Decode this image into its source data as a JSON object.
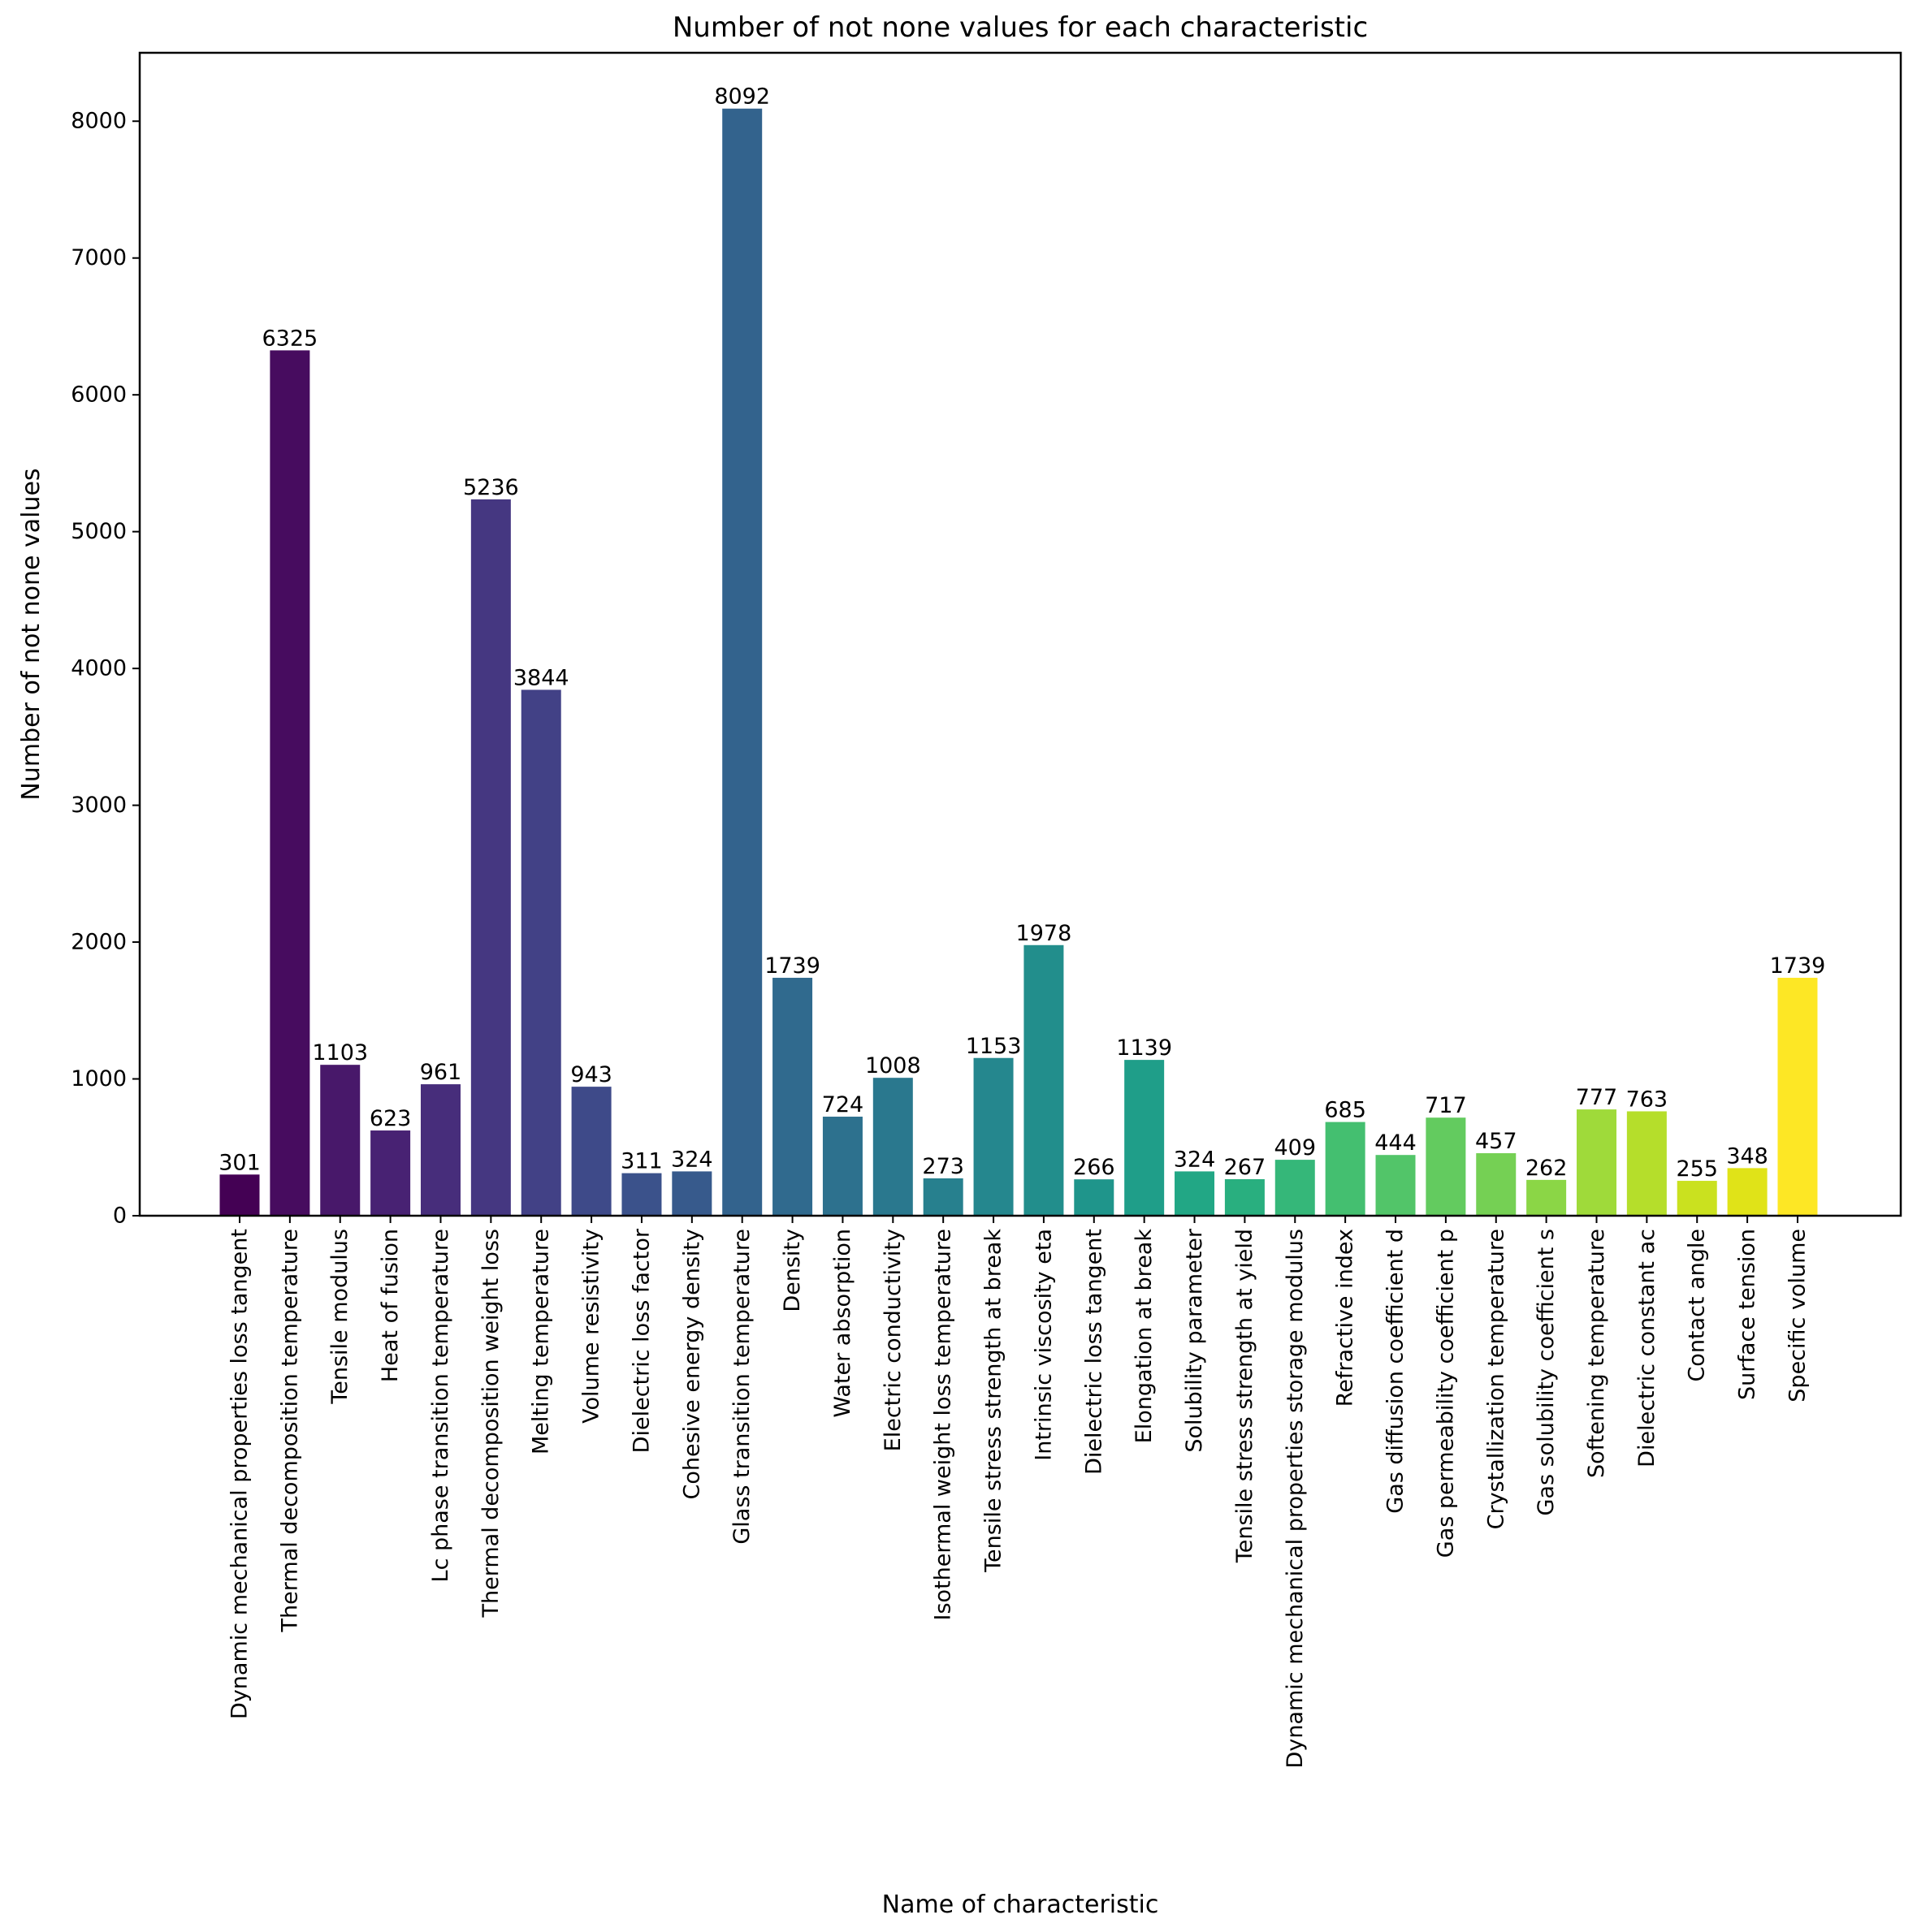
{
  "chart_data": {
    "type": "bar",
    "title": "Number of not none values for each characteristic",
    "xlabel": "Name of characteristic",
    "ylabel": "Number of not none values",
    "ylim": [
      0,
      8500
    ],
    "yticks": [
      0,
      1000,
      2000,
      3000,
      4000,
      5000,
      6000,
      7000,
      8000
    ],
    "grid": false,
    "categories": [
      "Dynamic mechanical properties loss tangent",
      "Thermal decomposition temperature",
      "Tensile modulus",
      "Heat of fusion",
      "Lc phase transition temperature",
      "Thermal decomposition weight loss",
      "Melting temperature",
      "Volume resistivity",
      "Dielectric loss factor",
      "Cohesive energy density",
      "Glass transition temperature",
      "Density",
      "Water absorption",
      "Electric conductivity",
      "Isothermal weight loss temperature",
      "Tensile stress strength at break",
      "Intrinsic viscosity eta",
      "Dielectric loss tangent",
      "Elongation at break",
      "Solubility parameter",
      "Tensile stress strength at yield",
      "Dynamic mechanical properties storage modulus",
      "Refractive index",
      "Gas diffusion coefficient d",
      "Gas permeability coefficient p",
      "Crystallization temperature",
      "Gas solubility coefficient s",
      "Softening temperature",
      "Dielectric constant ac",
      "Contact angle",
      "Surface tension",
      "Specific volume"
    ],
    "values": [
      301,
      6325,
      1103,
      623,
      961,
      5236,
      3844,
      943,
      311,
      324,
      8092,
      1739,
      724,
      1008,
      273,
      1153,
      1978,
      266,
      1139,
      324,
      267,
      409,
      685,
      444,
      717,
      457,
      262,
      777,
      763,
      255,
      348,
      1739
    ],
    "colors": [
      "#440154",
      "#470c5f",
      "#48186a",
      "#482273",
      "#472d7b",
      "#453781",
      "#424186",
      "#3e4a89",
      "#3b528b",
      "#375a8c",
      "#33638d",
      "#306a8e",
      "#2d718e",
      "#2a788e",
      "#27808e",
      "#25878e",
      "#228e8c",
      "#1f958b",
      "#1f9e89",
      "#22a785",
      "#29af7f",
      "#35b779",
      "#44bf70",
      "#52c569",
      "#63cb5f",
      "#75d054",
      "#8bd646",
      "#9fda3a",
      "#b5de2b",
      "#cae11f",
      "#e0e318",
      "#fde725"
    ]
  }
}
